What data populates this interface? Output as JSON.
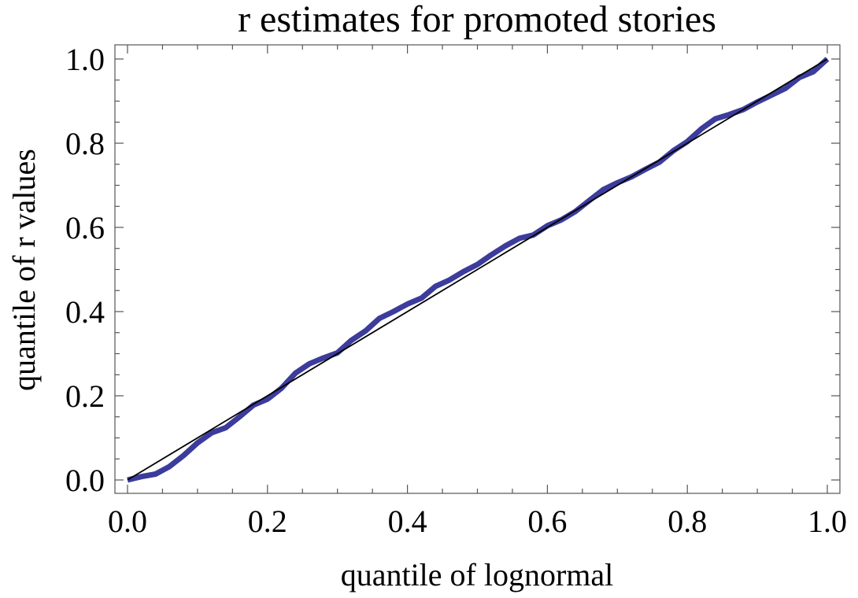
{
  "chart_data": {
    "type": "line",
    "title": "r estimates for promoted stories",
    "xlabel": "quantile of lognormal",
    "ylabel": "quantile of r values",
    "xlim": [
      0.0,
      1.0
    ],
    "ylim": [
      0.0,
      1.0
    ],
    "grid": false,
    "legend": "none",
    "x_ticks": [
      "0.0",
      "0.2",
      "0.4",
      "0.6",
      "0.8",
      "1.0"
    ],
    "y_ticks": [
      "0.0",
      "0.2",
      "0.4",
      "0.6",
      "0.8",
      "1.0"
    ],
    "x_tick_values": [
      0.0,
      0.2,
      0.4,
      0.6,
      0.8,
      1.0
    ],
    "y_tick_values": [
      0.0,
      0.2,
      0.4,
      0.6,
      0.8,
      1.0
    ],
    "series": [
      {
        "color": "#3c3c9c",
        "x": [
          0.0,
          0.02,
          0.04,
          0.06,
          0.08,
          0.1,
          0.12,
          0.14,
          0.16,
          0.18,
          0.2,
          0.22,
          0.24,
          0.26,
          0.28,
          0.3,
          0.32,
          0.34,
          0.36,
          0.38,
          0.4,
          0.42,
          0.44,
          0.46,
          0.48,
          0.5,
          0.52,
          0.54,
          0.56,
          0.58,
          0.6,
          0.62,
          0.64,
          0.66,
          0.68,
          0.7,
          0.72,
          0.74,
          0.76,
          0.78,
          0.8,
          0.82,
          0.84,
          0.86,
          0.88,
          0.9,
          0.92,
          0.94,
          0.96,
          0.98,
          1.0
        ],
        "y": [
          0.0,
          0.008,
          0.014,
          0.032,
          0.058,
          0.088,
          0.112,
          0.124,
          0.15,
          0.178,
          0.192,
          0.218,
          0.254,
          0.276,
          0.29,
          0.302,
          0.332,
          0.354,
          0.384,
          0.4,
          0.418,
          0.432,
          0.46,
          0.475,
          0.495,
          0.512,
          0.535,
          0.556,
          0.574,
          0.582,
          0.604,
          0.618,
          0.638,
          0.664,
          0.69,
          0.706,
          0.72,
          0.738,
          0.755,
          0.782,
          0.804,
          0.834,
          0.858,
          0.868,
          0.88,
          0.898,
          0.914,
          0.93,
          0.956,
          0.97,
          1.0
        ]
      },
      {
        "color": "#000000",
        "x": [
          0.0,
          1.0
        ],
        "y": [
          0.0,
          1.0
        ]
      }
    ]
  }
}
